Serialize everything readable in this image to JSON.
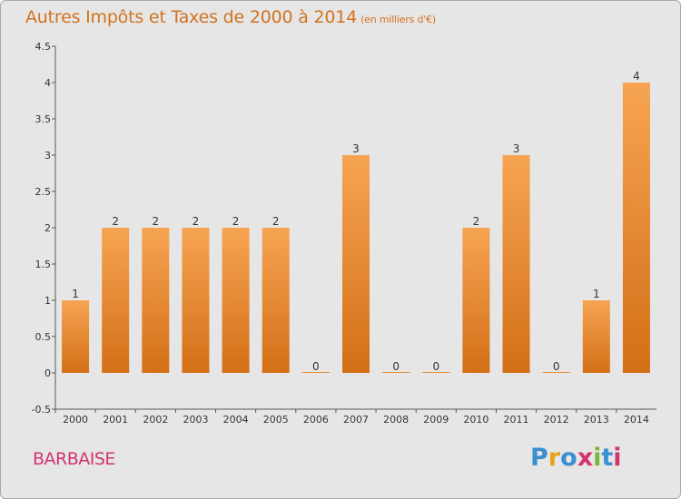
{
  "title": {
    "main": "Autres Impôts et Taxes de 2000 à 2014",
    "unit": "(en milliers d'€)"
  },
  "commune": "BARBAISE",
  "logo": {
    "letters": [
      "P",
      "r",
      "o",
      "x",
      "i",
      "t",
      "i"
    ],
    "colors": [
      "#3a8fd0",
      "#e8a11b",
      "#3a8fd0",
      "#d2336f",
      "#7bb83a",
      "#3a8fd0",
      "#d2336f"
    ]
  },
  "colors": {
    "title": "#d2721f",
    "bar_top": "#f6a452",
    "bar_bottom": "#d36f17",
    "commune": "#d2336f",
    "background": "#e6e6e6"
  },
  "chart_data": {
    "type": "bar",
    "categories": [
      "2000",
      "2001",
      "2002",
      "2003",
      "2004",
      "2005",
      "2006",
      "2007",
      "2008",
      "2009",
      "2010",
      "2011",
      "2012",
      "2013",
      "2014"
    ],
    "values": [
      1,
      2,
      2,
      2,
      2,
      2,
      0,
      3,
      0,
      0,
      2,
      3,
      0,
      1,
      4
    ],
    "value_labels": [
      "1",
      "2",
      "2",
      "2",
      "2",
      "2",
      "0",
      "3",
      "0",
      "0",
      "2",
      "3",
      "0",
      "1",
      "4"
    ],
    "y_ticks": [
      -0.5,
      0,
      0.5,
      1,
      1.5,
      2,
      2.5,
      3,
      3.5,
      4,
      4.5
    ],
    "y_tick_labels": [
      "-0.5",
      "0",
      "0.5",
      "1",
      "1.5",
      "2",
      "2.5",
      "3",
      "3.5",
      "4",
      "4.5"
    ],
    "ylim": [
      -0.5,
      4.5
    ],
    "title": "Autres Impôts et Taxes de 2000 à 2014",
    "grid": false,
    "legend": "none"
  }
}
